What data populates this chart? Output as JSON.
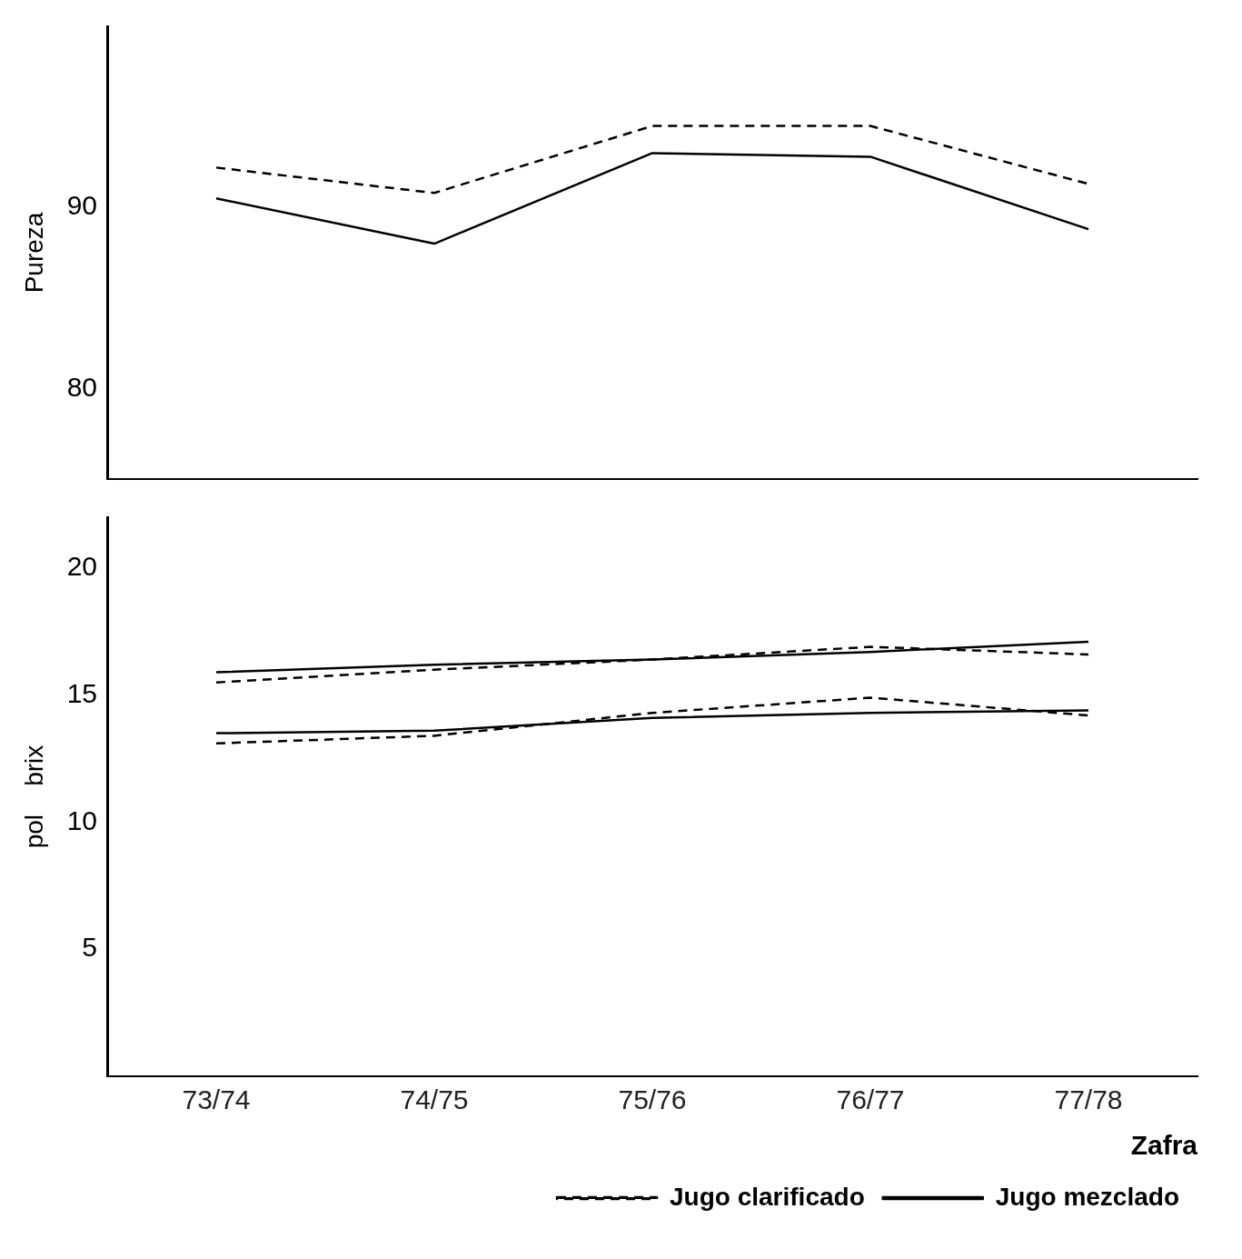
{
  "chart_data": [
    {
      "type": "line",
      "ylabel": "Pureza",
      "categories": [
        null,
        null,
        null,
        null,
        null
      ],
      "ylim": [
        75,
        100
      ],
      "yticks": [
        80,
        90
      ],
      "tick_labels": "y",
      "grid": false,
      "marker": "none",
      "series": [
        {
          "color": "#000000",
          "line_style": "dashed",
          "values": [
            92.2,
            90.8,
            94.5,
            94.5,
            91.3
          ]
        },
        {
          "color": "#000000",
          "line_style": "solid",
          "values": [
            90.5,
            88,
            93,
            92.8,
            88.8
          ]
        }
      ]
    },
    {
      "type": "line",
      "ylabel": "pol    brix",
      "xlabel": "Zafra",
      "categories": [
        "73/74",
        "74/75",
        "75/76",
        "76/77",
        "77/78"
      ],
      "ylim": [
        0,
        22
      ],
      "yticks": [
        5,
        10,
        15,
        20
      ],
      "grid": false,
      "marker": "none",
      "legend": "bottom right",
      "series": [
        {
          "name": "Jugo clarificado",
          "color": "#000000",
          "line_style": "dashed",
          "values": [
            15.5,
            16,
            16.4,
            16.9,
            16.6
          ]
        },
        {
          "name": "Jugo mezclado",
          "color": "#000000",
          "line_style": "solid",
          "values": [
            15.9,
            16.2,
            16.4,
            16.7,
            17.1
          ]
        },
        {
          "color": "#000000",
          "line_style": "dashed",
          "values": [
            13.1,
            13.4,
            14.3,
            14.9,
            14.2
          ]
        },
        {
          "color": "#000000",
          "line_style": "solid",
          "values": [
            13.5,
            13.6,
            14.1,
            14.3,
            14.4
          ]
        }
      ]
    }
  ]
}
